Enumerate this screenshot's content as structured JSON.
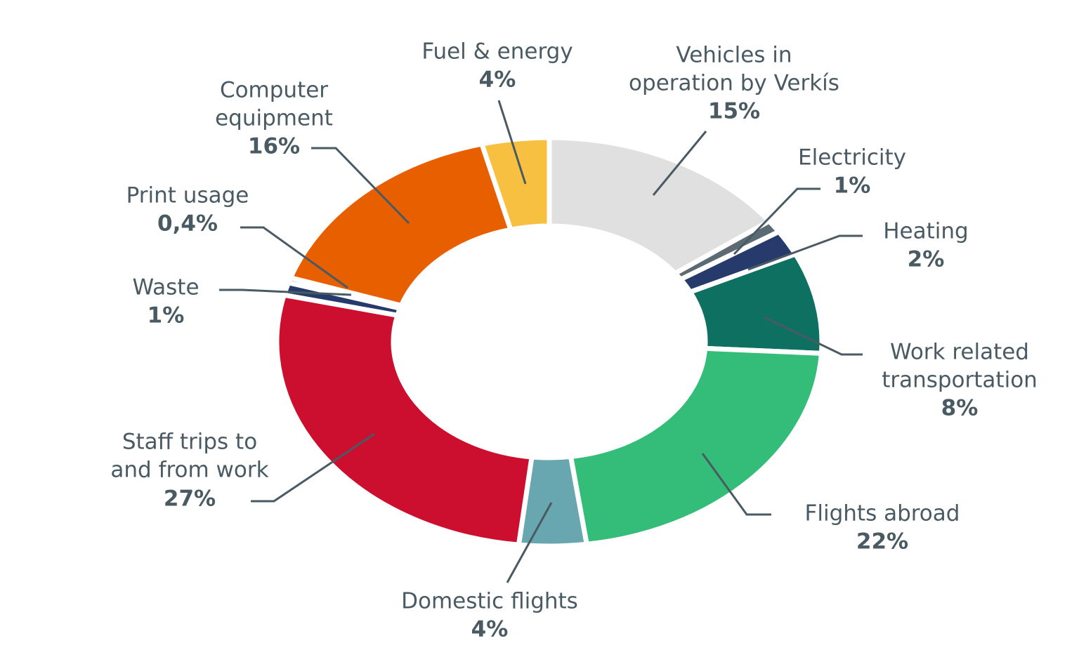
{
  "chart_data": {
    "type": "pie",
    "variant": "donut",
    "title": "",
    "start": "top",
    "direction": "clockwise",
    "slices": [
      {
        "label": [
          "Vehicles in",
          "operation by Verkís"
        ],
        "value": 15,
        "value_label": "15%",
        "color": "#e0e0e0"
      },
      {
        "label": [
          "Electricity"
        ],
        "value": 1,
        "value_label": "1%",
        "color": "#5c6b73"
      },
      {
        "label": [
          "Heating"
        ],
        "value": 2,
        "value_label": "2%",
        "color": "#263a6b"
      },
      {
        "label": [
          "Work related",
          "transportation"
        ],
        "value": 8,
        "value_label": "8%",
        "color": "#0e7060"
      },
      {
        "label": [
          "Flights abroad"
        ],
        "value": 22,
        "value_label": "22%",
        "color": "#34bd78"
      },
      {
        "label": [
          "Domestic flights"
        ],
        "value": 4,
        "value_label": "4%",
        "color": "#68a6b0"
      },
      {
        "label": [
          "Staff trips to",
          "and from work"
        ],
        "value": 27,
        "value_label": "27%",
        "color": "#cc0f2e"
      },
      {
        "label": [
          "Waste"
        ],
        "value": 1,
        "value_label": "1%",
        "color": "#263a6b"
      },
      {
        "label": [
          "Print usage"
        ],
        "value": 0.4,
        "value_label": "0,4%",
        "color": "#a3281e"
      },
      {
        "label": [
          "Computer",
          "equipment"
        ],
        "value": 16,
        "value_label": "16%",
        "color": "#e85f00"
      },
      {
        "label": [
          "Fuel & energy"
        ],
        "value": 4,
        "value_label": "4%",
        "color": "#f7c040"
      }
    ],
    "text_color": "#4a5a63"
  }
}
